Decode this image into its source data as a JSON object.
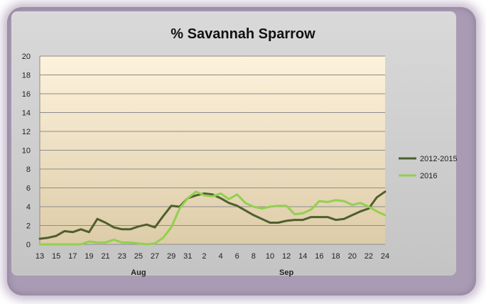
{
  "chart_data": {
    "type": "line",
    "title": "% Savannah Sparrow",
    "xlabel": "",
    "ylabel": "",
    "ylim": [
      0,
      20
    ],
    "yticks": [
      0,
      2,
      4,
      6,
      8,
      10,
      12,
      14,
      16,
      18,
      20
    ],
    "x_tick_labels": [
      "13",
      "15",
      "17",
      "19",
      "21",
      "23",
      "25",
      "27",
      "29",
      "31",
      "2",
      "4",
      "6",
      "8",
      "10",
      "12",
      "14",
      "16",
      "18",
      "20",
      "22",
      "24"
    ],
    "month_labels": [
      {
        "label": "Aug",
        "at_tick": "25"
      },
      {
        "label": "Sep",
        "at_tick": "12"
      }
    ],
    "grid": true,
    "legend_position": "right",
    "colors": {
      "series_2012_2015": "#4f5f2c",
      "series_2016": "#92d050",
      "plot_top": "#fdf2dc",
      "plot_bottom": "#ddcca8",
      "frame": "#a99bb3"
    },
    "categories": [
      "13",
      "14",
      "15",
      "16",
      "17",
      "18",
      "19",
      "20",
      "21",
      "22",
      "23",
      "24",
      "25",
      "26",
      "27",
      "28",
      "29",
      "30",
      "31",
      "1",
      "2",
      "3",
      "4",
      "5",
      "6",
      "7",
      "8",
      "9",
      "10",
      "11",
      "12",
      "13",
      "14",
      "15",
      "16",
      "17",
      "18",
      "19",
      "20",
      "21",
      "22",
      "23",
      "24"
    ],
    "series": [
      {
        "name": "2012-2015",
        "values": [
          0.6,
          0.7,
          0.9,
          1.4,
          1.3,
          1.6,
          1.3,
          2.7,
          2.3,
          1.8,
          1.6,
          1.6,
          1.9,
          2.1,
          1.8,
          3.0,
          4.1,
          4.0,
          4.9,
          5.2,
          5.4,
          5.3,
          4.9,
          4.4,
          4.1,
          3.6,
          3.1,
          2.7,
          2.3,
          2.3,
          2.5,
          2.6,
          2.6,
          2.9,
          2.9,
          2.9,
          2.6,
          2.7,
          3.1,
          3.5,
          3.8,
          5.0,
          5.6
        ]
      },
      {
        "name": "2016",
        "values": [
          0.0,
          0.0,
          0.0,
          0.0,
          0.0,
          0.0,
          0.3,
          0.2,
          0.2,
          0.5,
          0.2,
          0.2,
          0.1,
          0.0,
          0.1,
          0.7,
          1.8,
          3.8,
          4.9,
          5.6,
          5.2,
          5.1,
          5.4,
          4.8,
          5.3,
          4.4,
          4.0,
          3.8,
          4.0,
          4.1,
          4.1,
          3.2,
          3.3,
          3.7,
          4.6,
          4.5,
          4.7,
          4.6,
          4.2,
          4.4,
          4.0,
          3.5,
          3.1
        ]
      }
    ]
  }
}
